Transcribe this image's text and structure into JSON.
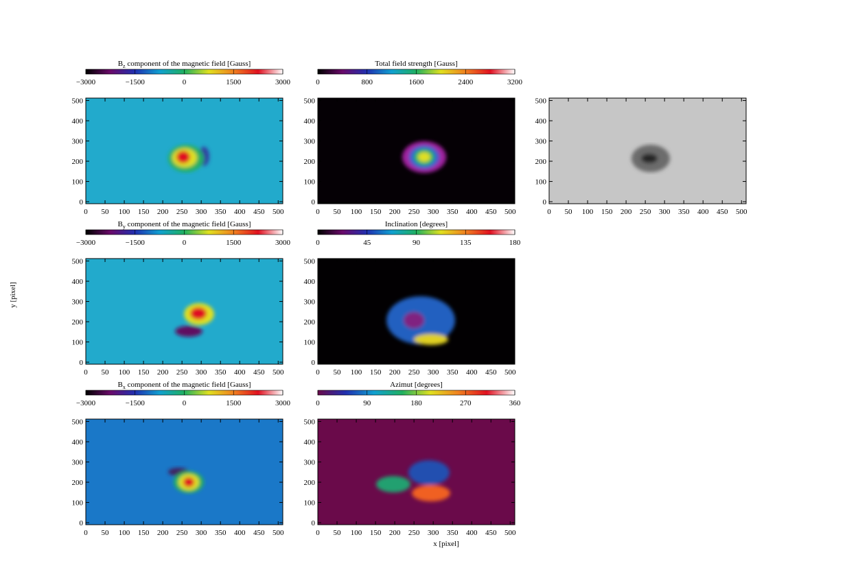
{
  "figure": {
    "xlabel": "x [pixel]",
    "ylabel": "y [pixel]"
  },
  "chart_data": [
    {
      "type": "image",
      "title_symbol": "B",
      "title_subscript": "z",
      "title": " component of the magnetic field [Gauss]",
      "colorbar_lim": [
        -3000,
        3000
      ],
      "colorbar_ticks": [
        {
          "value": -3000,
          "label": "−3000"
        },
        {
          "value": -1500,
          "label": "−1500"
        },
        0,
        1500,
        3000
      ],
      "colormap": [
        "#000000",
        "#6a0a6a",
        "#2030b0",
        "#10a0d0",
        "#20b060",
        "#e0e020",
        "#f08020",
        "#e01020",
        "#ffffff"
      ],
      "background": "#22aacc",
      "xlim": [
        0,
        512
      ],
      "ylim": [
        -10,
        512
      ],
      "xticks": [
        0,
        50,
        100,
        150,
        200,
        250,
        300,
        350,
        400,
        450,
        500
      ],
      "yticks": [
        0,
        100,
        200,
        300,
        400,
        500
      ]
    },
    {
      "type": "image",
      "title": "Total field strength [Gauss]",
      "colorbar_lim": [
        0,
        3200
      ],
      "colorbar_ticks": [
        0,
        800,
        1600,
        2400,
        3200
      ],
      "colormap": [
        "#000000",
        "#6a0a6a",
        "#2030b0",
        "#10a0d0",
        "#20b060",
        "#e0e020",
        "#f08020",
        "#e01020",
        "#ffffff"
      ],
      "background": "#050005",
      "xlim": [
        0,
        512
      ],
      "ylim": [
        -10,
        512
      ],
      "xticks": [
        0,
        50,
        100,
        150,
        200,
        250,
        300,
        350,
        400,
        450,
        500
      ],
      "yticks": [
        0,
        100,
        200,
        300,
        400,
        500
      ]
    },
    {
      "type": "image",
      "background": "#c6c6c6",
      "xlim": [
        0,
        512
      ],
      "ylim": [
        -10,
        512
      ],
      "xticks": [
        0,
        50,
        100,
        150,
        200,
        250,
        300,
        350,
        400,
        450,
        500
      ],
      "yticks": [
        0,
        100,
        200,
        300,
        400,
        500
      ]
    },
    {
      "type": "image",
      "title_symbol": "B",
      "title_subscript": "y",
      "title": " component of the magnetic field [Gauss]",
      "colorbar_lim": [
        -3000,
        3000
      ],
      "colorbar_ticks": [
        {
          "value": -3000,
          "label": "−3000"
        },
        {
          "value": -1500,
          "label": "−1500"
        },
        0,
        1500,
        3000
      ],
      "colormap": [
        "#000000",
        "#6a0a6a",
        "#2030b0",
        "#10a0d0",
        "#20b060",
        "#e0e020",
        "#f08020",
        "#e01020",
        "#ffffff"
      ],
      "background": "#22aacc",
      "xlim": [
        0,
        512
      ],
      "ylim": [
        -10,
        512
      ],
      "xticks": [
        0,
        50,
        100,
        150,
        200,
        250,
        300,
        350,
        400,
        450,
        500
      ],
      "yticks": [
        0,
        100,
        200,
        300,
        400,
        500
      ]
    },
    {
      "type": "image",
      "title": "Inclination [degrees]",
      "colorbar_lim": [
        0,
        180
      ],
      "colorbar_ticks": [
        0,
        45,
        90,
        135,
        180
      ],
      "colormap": [
        "#000000",
        "#6a0a6a",
        "#2030b0",
        "#10a0d0",
        "#20b060",
        "#e0e020",
        "#f08020",
        "#e01020",
        "#ffffff"
      ],
      "background": "#020002",
      "xlim": [
        0,
        512
      ],
      "ylim": [
        -10,
        512
      ],
      "xticks": [
        0,
        50,
        100,
        150,
        200,
        250,
        300,
        350,
        400,
        450,
        500
      ],
      "yticks": [
        0,
        100,
        200,
        300,
        400,
        500
      ]
    },
    {
      "type": "image",
      "title_symbol": "B",
      "title_subscript": "x",
      "title": " component of the magnetic field [Gauss]",
      "colorbar_lim": [
        -3000,
        3000
      ],
      "colorbar_ticks": [
        {
          "value": -3000,
          "label": "−3000"
        },
        {
          "value": -1500,
          "label": "−1500"
        },
        0,
        1500,
        3000
      ],
      "colormap": [
        "#000000",
        "#6a0a6a",
        "#2030b0",
        "#10a0d0",
        "#20b060",
        "#e0e020",
        "#f08020",
        "#e01020",
        "#ffffff"
      ],
      "background": "#1a78c8",
      "xlim": [
        0,
        512
      ],
      "ylim": [
        -10,
        512
      ],
      "xticks": [
        0,
        50,
        100,
        150,
        200,
        250,
        300,
        350,
        400,
        450,
        500
      ],
      "yticks": [
        0,
        100,
        200,
        300,
        400,
        500
      ]
    },
    {
      "type": "image",
      "title": "Azimut [degrees]",
      "colorbar_lim": [
        0,
        360
      ],
      "colorbar_ticks": [
        0,
        90,
        180,
        270,
        360
      ],
      "colormap": [
        "#6a0a4a",
        "#2030b0",
        "#10a0d0",
        "#20b060",
        "#e0e020",
        "#f08020",
        "#e01020",
        "#ffffff"
      ],
      "background": "#6a0a4a",
      "xlim": [
        0,
        512
      ],
      "ylim": [
        -10,
        512
      ],
      "xticks": [
        0,
        50,
        100,
        150,
        200,
        250,
        300,
        350,
        400,
        450,
        500
      ],
      "yticks": [
        0,
        100,
        200,
        300,
        400,
        500
      ]
    }
  ]
}
